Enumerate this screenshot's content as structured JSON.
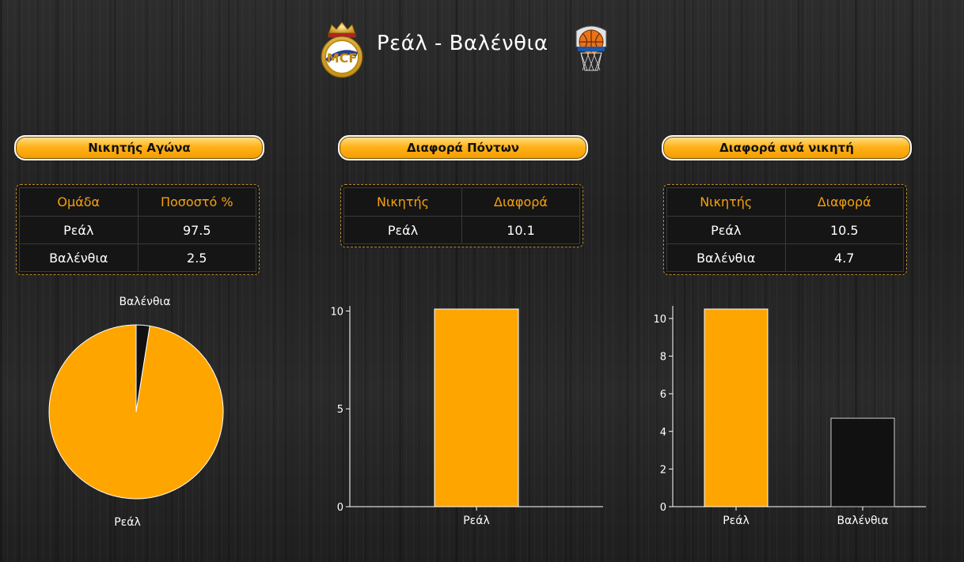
{
  "header": {
    "title": "Ρεάλ - Βαλένθια",
    "home_logo_icon": "real-madrid-crest-icon",
    "away_logo_icon": "valencia-basket-crest-icon"
  },
  "colors": {
    "accent": "#ffa500",
    "secondary_bar": "#111111",
    "table_header": "#f6a10d"
  },
  "panels": [
    {
      "title": "Νικητής Αγώνα",
      "table": {
        "headers": [
          "Ομάδα",
          "Ποσοστό %"
        ],
        "rows": [
          [
            "Ρεάλ",
            "97.5"
          ],
          [
            "Βαλένθια",
            "2.5"
          ]
        ]
      }
    },
    {
      "title": "Διαφορά Πόντων",
      "table": {
        "headers": [
          "Νικητής",
          "Διαφορά"
        ],
        "rows": [
          [
            "Ρεάλ",
            "10.1"
          ]
        ]
      }
    },
    {
      "title": "Διαφορά ανά νικητή",
      "table": {
        "headers": [
          "Νικητής",
          "Διαφορά"
        ],
        "rows": [
          [
            "Ρεάλ",
            "10.5"
          ],
          [
            "Βαλένθια",
            "4.7"
          ]
        ]
      }
    }
  ],
  "chart_data": [
    {
      "type": "pie",
      "categories": [
        "Ρεάλ",
        "Βαλένθια"
      ],
      "values": [
        97.5,
        2.5
      ],
      "colors": [
        "#ffa500",
        "#111111"
      ]
    },
    {
      "type": "bar",
      "categories": [
        "Ρεάλ"
      ],
      "values": [
        10.1
      ],
      "ylim": [
        0,
        10.1
      ],
      "yticks": [
        0,
        5,
        10
      ],
      "colors": [
        "#ffa500"
      ]
    },
    {
      "type": "bar",
      "categories": [
        "Ρεάλ",
        "Βαλένθια"
      ],
      "values": [
        10.5,
        4.7
      ],
      "ylim": [
        0,
        10.5
      ],
      "yticks": [
        0,
        2,
        4,
        6,
        8,
        10
      ],
      "colors": [
        "#ffa500",
        "#111111"
      ]
    }
  ]
}
